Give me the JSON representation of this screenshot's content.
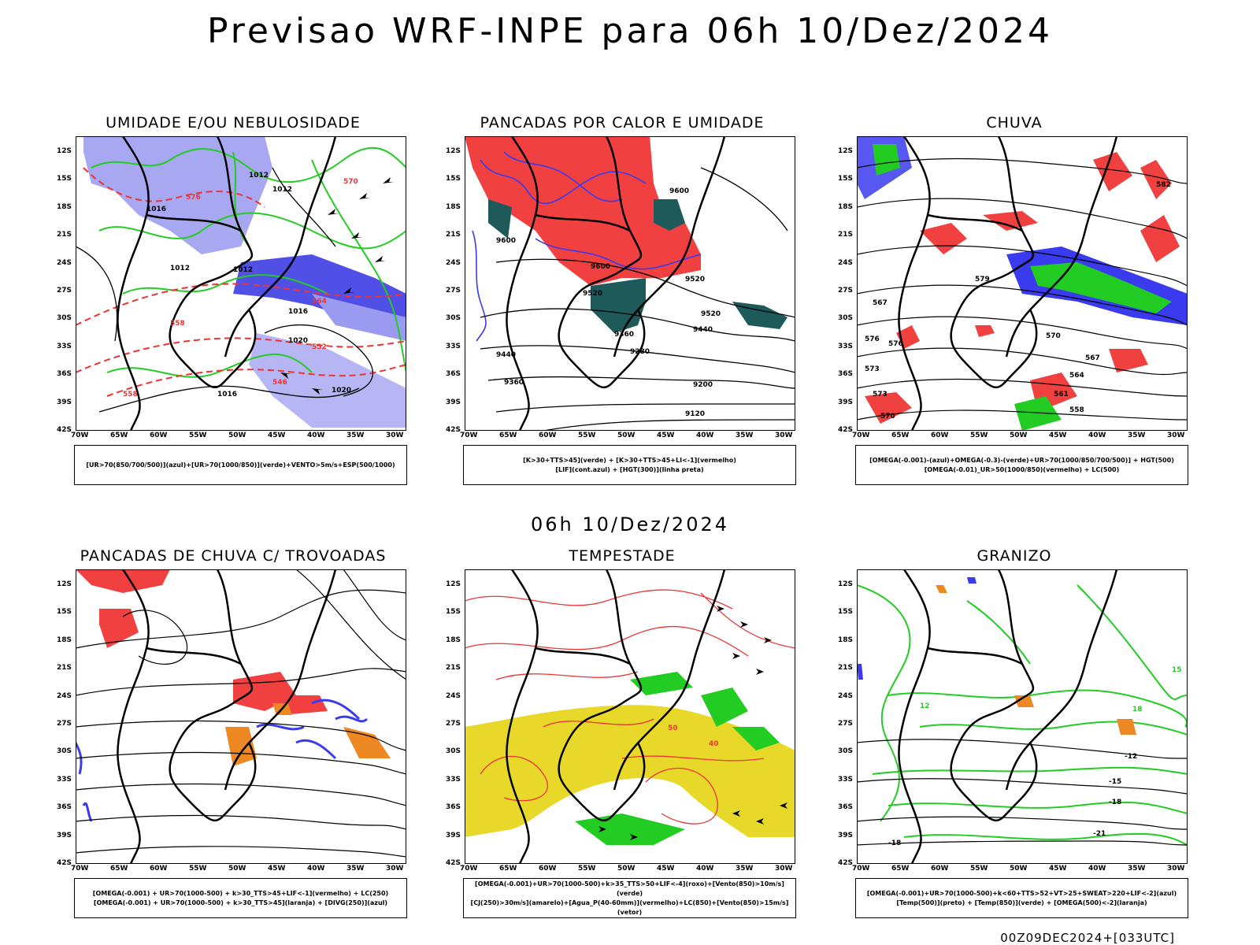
{
  "header": {
    "title": "Previsao WRF-INPE  para 06h 10/Dez/2024"
  },
  "mid_time": "06h 10/Dez/2024",
  "footer_stamp": "00Z09DEC2024+[033UTC]",
  "axes": {
    "lat_labels": [
      "12S",
      "15S",
      "18S",
      "21S",
      "24S",
      "27S",
      "30S",
      "33S",
      "36S",
      "39S",
      "42S"
    ],
    "lon_labels": [
      "70W",
      "65W",
      "60W",
      "55W",
      "50W",
      "45W",
      "40W",
      "35W",
      "30W"
    ]
  },
  "panels": [
    {
      "title": "UMIDADE E/OU NEBULOSIDADE",
      "legend": [
        "[UR>70(850/700/500)](azul)+[UR>70(1000/850)](verde)+VENTO>5m/s+ESP(500/1000)"
      ],
      "contour_labels": [
        "1012",
        "1012",
        "1016",
        "1012",
        "1012",
        "1016",
        "1020",
        "1016",
        "1020",
        "576",
        "570",
        "564",
        "558",
        "552",
        "546",
        "558"
      ]
    },
    {
      "title": "PANCADAS POR CALOR E UMIDADE",
      "legend": [
        "[K>30+TTS>45](verde) + [K>30+TTS>45+LI<-1](vermelho)",
        "[LIF](cont.azul) + [HGT(300)](linha preta)"
      ],
      "contour_labels": [
        "9600",
        "9600",
        "9600",
        "9520",
        "9520",
        "9440",
        "9440",
        "9360",
        "9360",
        "9280",
        "9200",
        "9120",
        "9520"
      ]
    },
    {
      "title": "CHUVA",
      "legend": [
        "[OMEGA(-0.001)-(azul)+OMEGA(-0.3)-(verde)+UR>70(1000/850/700/500)] + HGT(500)",
        "[OMEGA(-0.01)_UR>50(1000/850)(vermelho) + LC(500)"
      ],
      "contour_labels": [
        "582",
        "579",
        "576",
        "573",
        "570",
        "567",
        "564",
        "561",
        "558",
        "576",
        "573",
        "570",
        "567"
      ]
    },
    {
      "title": "PANCADAS DE CHUVA C/ TROVOADAS",
      "legend": [
        "[OMEGA(-0.001) + UR>70(1000-500) + k>30_TTS>45+LIF<-1](vermelho) + LC(250)",
        "[OMEGA(-0.001) + UR>70(1000-500) + k>30_TTS>45](laranja) + [DIVG(250)](azul)"
      ],
      "contour_labels": []
    },
    {
      "title": "TEMPESTADE",
      "legend": [
        "[OMEGA(-0.001)+UR>70(1000-500)+k>35_TTS>50+LIF<-4](roxo)+[Vento(850)>10m/s](verde)",
        "[CJ(250)>30m/s](amarelo)+[Agua_P(40-60mm)](vermelho)+LC(850)+[Vento(850)>15m/s](vetor)"
      ],
      "contour_labels": [
        "50",
        "40"
      ]
    },
    {
      "title": "GRANIZO",
      "legend": [
        "[OMEGA(-0.001)+UR>70(1000-500)+k<60+TTS>52+VT>25+SWEAT>220+LIF<-2](azul)",
        "[Temp(500)](preto) + [Temp(850)](verde) + [OMEGA(500)<-2](laranja)"
      ],
      "contour_labels": [
        "15",
        "12",
        "18",
        "-12",
        "-15",
        "-18",
        "-21",
        "-18"
      ]
    }
  ],
  "colors": {
    "blue_fill": "#9a9af0",
    "blue_dark": "#4848e8",
    "green": "#22cc22",
    "red": "#ee3333",
    "teal": "#1f5a5a",
    "yellow": "#e8d82a",
    "orange": "#ee8822",
    "contour": "#000000"
  }
}
